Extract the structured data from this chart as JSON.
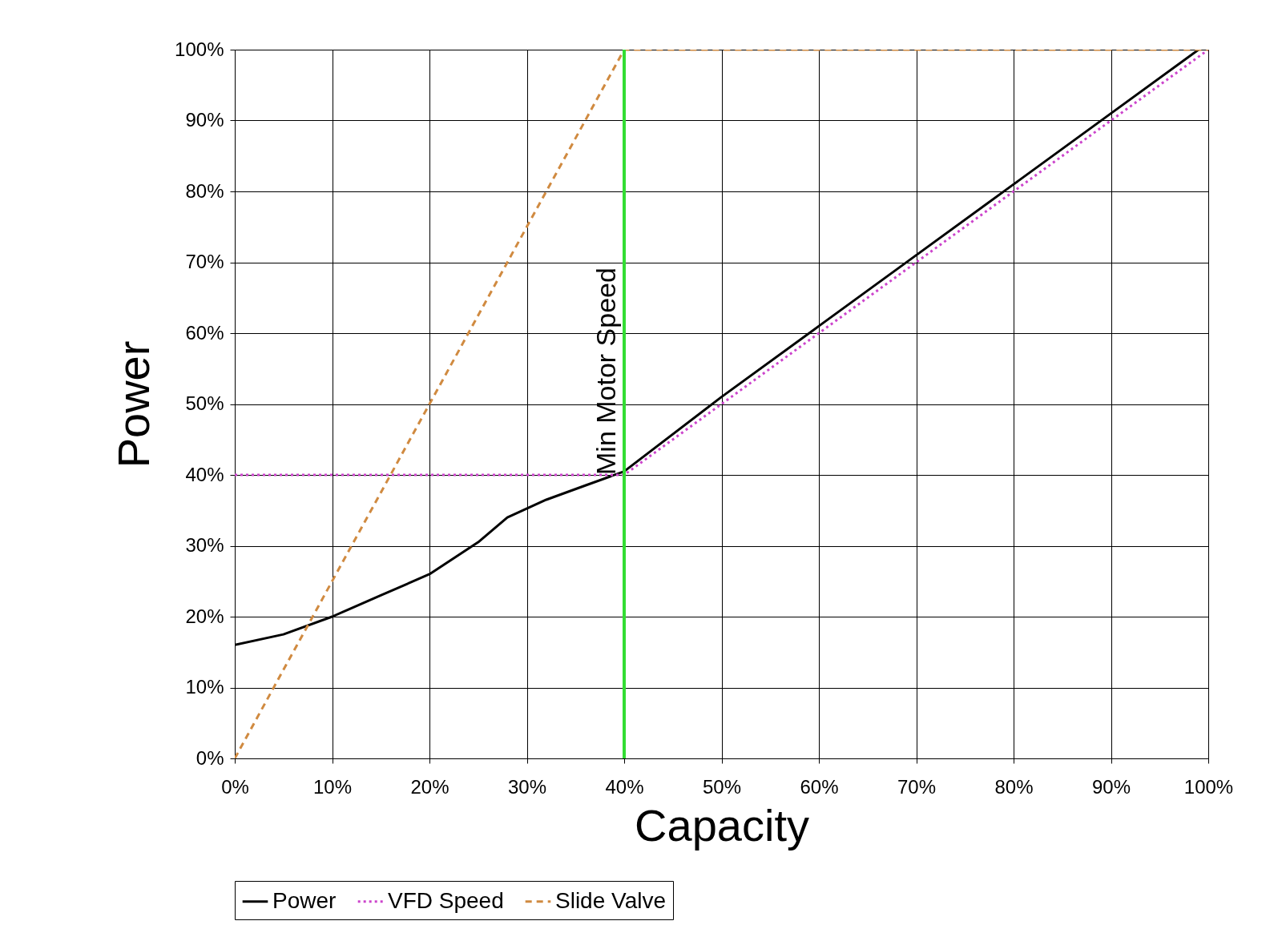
{
  "chart_data": {
    "type": "line",
    "xlabel": "Capacity",
    "ylabel": "Power",
    "xlim": [
      0,
      100
    ],
    "ylim": [
      0,
      100
    ],
    "xticks": [
      {
        "value": 0,
        "label": "0%"
      },
      {
        "value": 10,
        "label": "10%"
      },
      {
        "value": 20,
        "label": "20%"
      },
      {
        "value": 30,
        "label": "30%"
      },
      {
        "value": 40,
        "label": "40%"
      },
      {
        "value": 50,
        "label": "50%"
      },
      {
        "value": 60,
        "label": "60%"
      },
      {
        "value": 70,
        "label": "70%"
      },
      {
        "value": 80,
        "label": "80%"
      },
      {
        "value": 90,
        "label": "90%"
      },
      {
        "value": 100,
        "label": "100%"
      }
    ],
    "yticks": [
      {
        "value": 0,
        "label": "0%"
      },
      {
        "value": 10,
        "label": "10%"
      },
      {
        "value": 20,
        "label": "20%"
      },
      {
        "value": 30,
        "label": "30%"
      },
      {
        "value": 40,
        "label": "40%"
      },
      {
        "value": 50,
        "label": "50%"
      },
      {
        "value": 60,
        "label": "60%"
      },
      {
        "value": 70,
        "label": "70%"
      },
      {
        "value": 80,
        "label": "80%"
      },
      {
        "value": 90,
        "label": "90%"
      },
      {
        "value": 100,
        "label": "100%"
      }
    ],
    "grid": true,
    "legend": "bottom",
    "series": [
      {
        "name": "Power",
        "color": "#000000",
        "line_style": "solid",
        "x": [
          0,
          5,
          10,
          15,
          20,
          25,
          28,
          32,
          36,
          40,
          50,
          60,
          70,
          80,
          90,
          99
        ],
        "values": [
          16,
          17.5,
          20,
          23,
          26,
          30.5,
          34,
          36.5,
          38.5,
          40.5,
          51,
          61,
          71,
          81,
          91,
          100
        ]
      },
      {
        "name": "VFD Speed",
        "color": "#cc44cc",
        "line_style": "dotted",
        "x": [
          0,
          40,
          100
        ],
        "values": [
          40,
          40,
          100
        ]
      },
      {
        "name": "Slide Valve",
        "color": "#d08a40",
        "line_style": "dashed",
        "x": [
          0,
          40,
          100
        ],
        "values": [
          0,
          100,
          100
        ]
      }
    ],
    "ref_lines": [
      {
        "axis": "x",
        "value": 40,
        "label": "Min Motor Speed",
        "color": "#33dd33"
      }
    ]
  }
}
